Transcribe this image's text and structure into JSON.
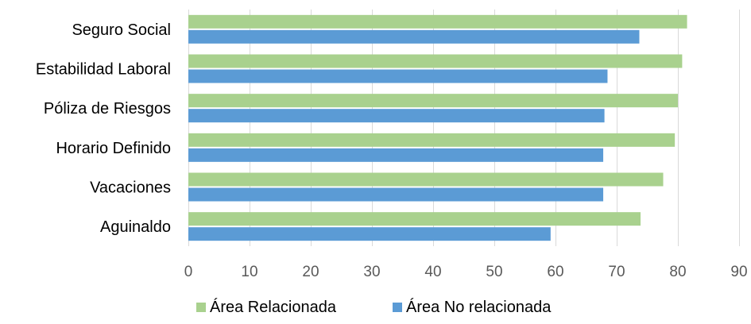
{
  "chart_data": {
    "type": "bar",
    "orientation": "horizontal",
    "title": "",
    "xlabel": "",
    "ylabel": "",
    "categories": [
      "Seguro Social",
      "Estabilidad Laboral",
      "Póliza de Riesgos",
      "Horario Definido",
      "Vacaciones",
      "Aguinaldo"
    ],
    "series": [
      {
        "name": "Área Relacionada",
        "color": "#a9d18e",
        "values": [
          81.5,
          80.7,
          80.0,
          79.5,
          77.6,
          73.9
        ]
      },
      {
        "name": "Área No relacionada",
        "color": "#5b9bd5",
        "values": [
          73.7,
          68.5,
          68.0,
          67.8,
          67.8,
          59.2
        ]
      }
    ],
    "xlim": [
      0,
      90
    ],
    "xticks": [
      0,
      10,
      20,
      30,
      40,
      50,
      60,
      70,
      80,
      90
    ],
    "grid": true,
    "legend_position": "bottom"
  }
}
